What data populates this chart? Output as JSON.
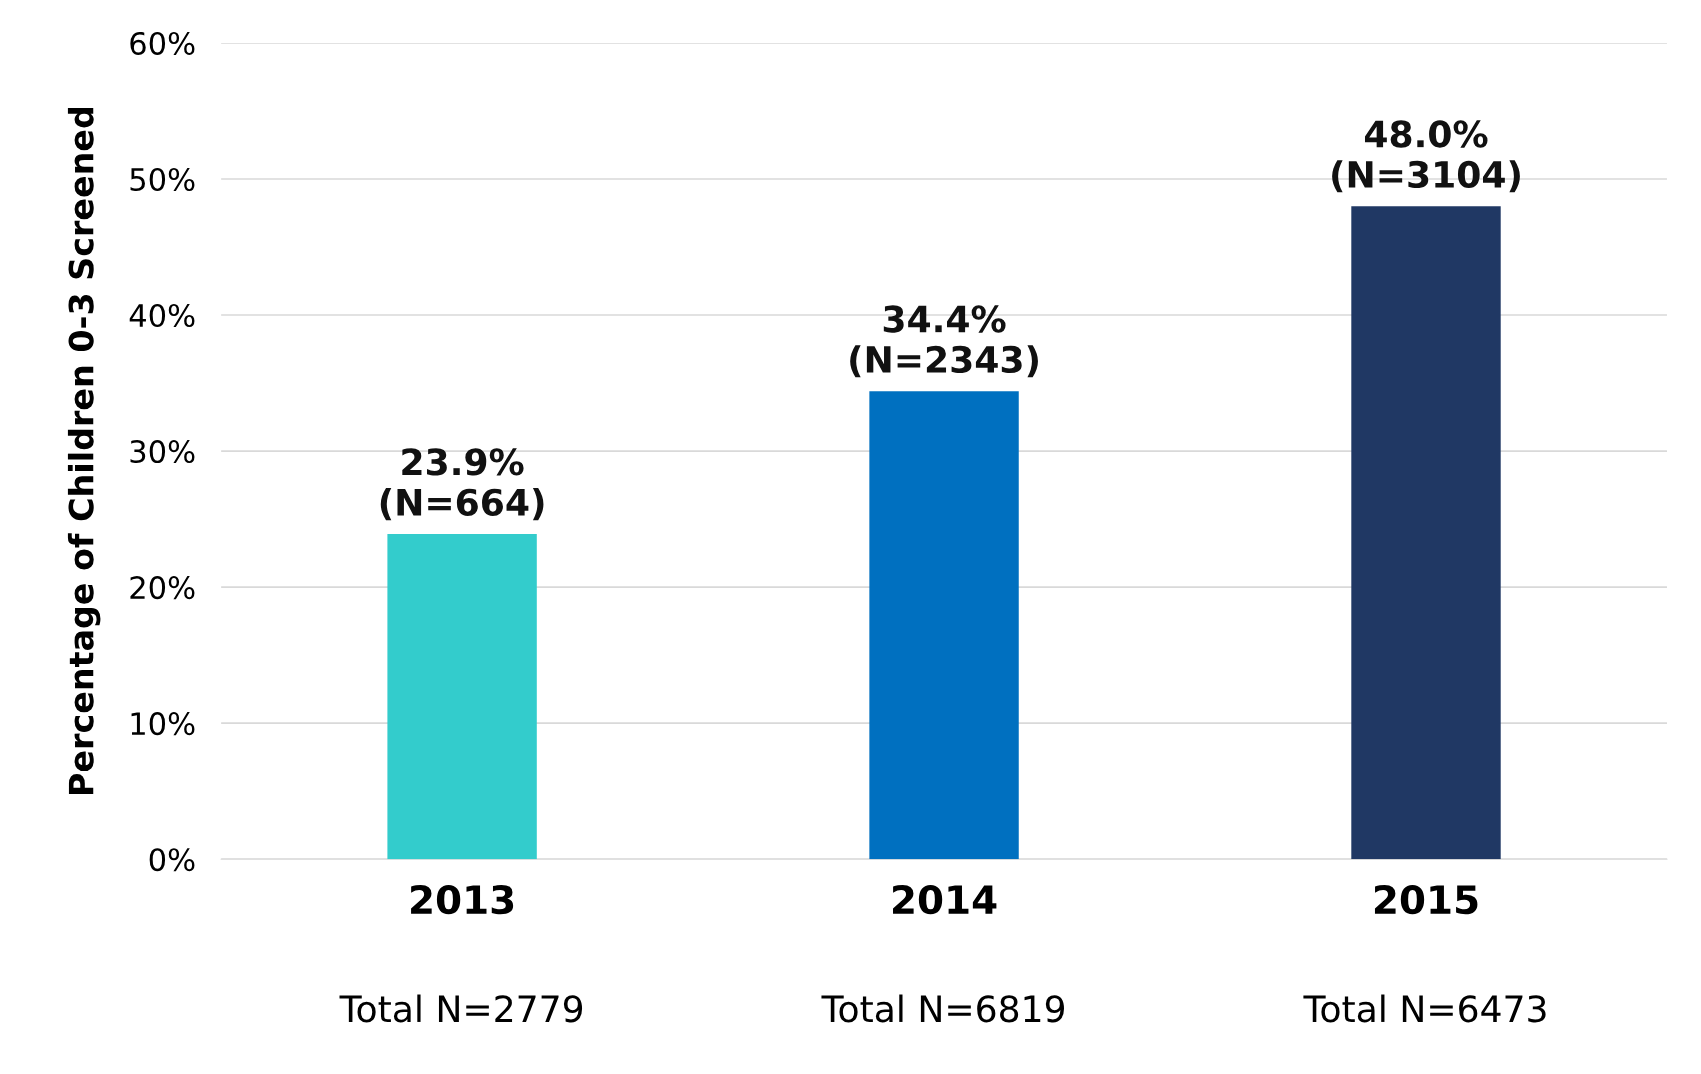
{
  "chart_data": {
    "type": "bar",
    "ylabel": "Percentage of Children 0-3 Screened",
    "categories": [
      "2013",
      "2014",
      "2015"
    ],
    "values": [
      23.9,
      34.4,
      48.0
    ],
    "colors": [
      "#33cccc",
      "#0070c0",
      "#203864"
    ],
    "value_labels": [
      "23.9%\n(N=664)",
      "34.4%\n(N=2343)",
      "48.0%\n(N=3104)"
    ],
    "ylim": [
      0,
      60
    ],
    "yticks": [
      {
        "value": 0,
        "label": "0%"
      },
      {
        "value": 10,
        "label": "10%"
      },
      {
        "value": 20,
        "label": "20%"
      },
      {
        "value": 30,
        "label": "30%"
      },
      {
        "value": 40,
        "label": "40%"
      },
      {
        "value": 50,
        "label": "50%"
      },
      {
        "value": 60,
        "label": "60%"
      }
    ],
    "grid": "y",
    "annotations": [
      "Total N=2779",
      "Total N=6819",
      "Total N=6473"
    ]
  }
}
